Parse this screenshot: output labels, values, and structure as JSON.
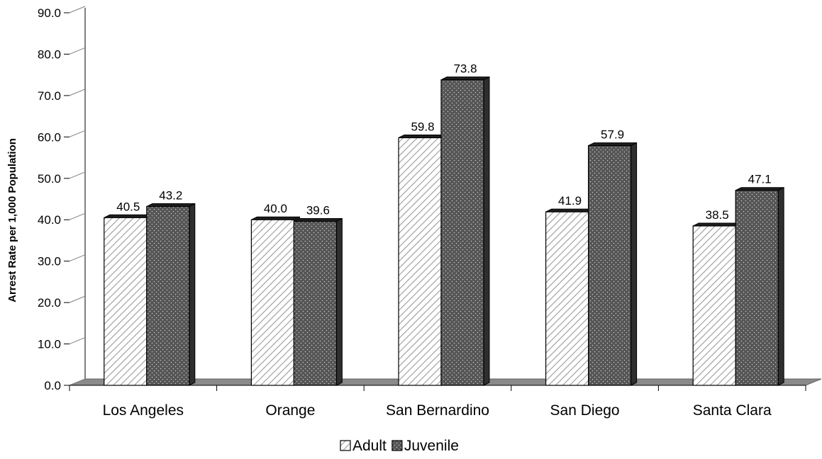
{
  "chart_data": {
    "type": "bar",
    "title": "",
    "xlabel": "",
    "ylabel": "Arrest Rate per 1,000 Population",
    "ylim": [
      0,
      90
    ],
    "ytick_step": 10,
    "ytick_labels": [
      "0.0",
      "10.0",
      "20.0",
      "30.0",
      "40.0",
      "50.0",
      "60.0",
      "70.0",
      "80.0",
      "90.0"
    ],
    "categories": [
      "Los Angeles",
      "Orange",
      "San Bernardino",
      "San Diego",
      "Santa Clara"
    ],
    "series": [
      {
        "name": "Adult",
        "values": [
          40.5,
          40.0,
          59.8,
          41.9,
          38.5
        ],
        "labels": [
          "40.5",
          "40.0",
          "59.8",
          "41.9",
          "38.5"
        ],
        "color": "#ffffff",
        "pattern": "diagonal-hatch"
      },
      {
        "name": "Juvenile",
        "values": [
          43.2,
          39.6,
          73.8,
          57.9,
          47.1
        ],
        "labels": [
          "43.2",
          "39.6",
          "73.8",
          "57.9",
          "47.1"
        ],
        "color": "#555555",
        "pattern": "dotted"
      }
    ],
    "grid": false,
    "legend_position": "bottom",
    "style": "3d-bar"
  }
}
